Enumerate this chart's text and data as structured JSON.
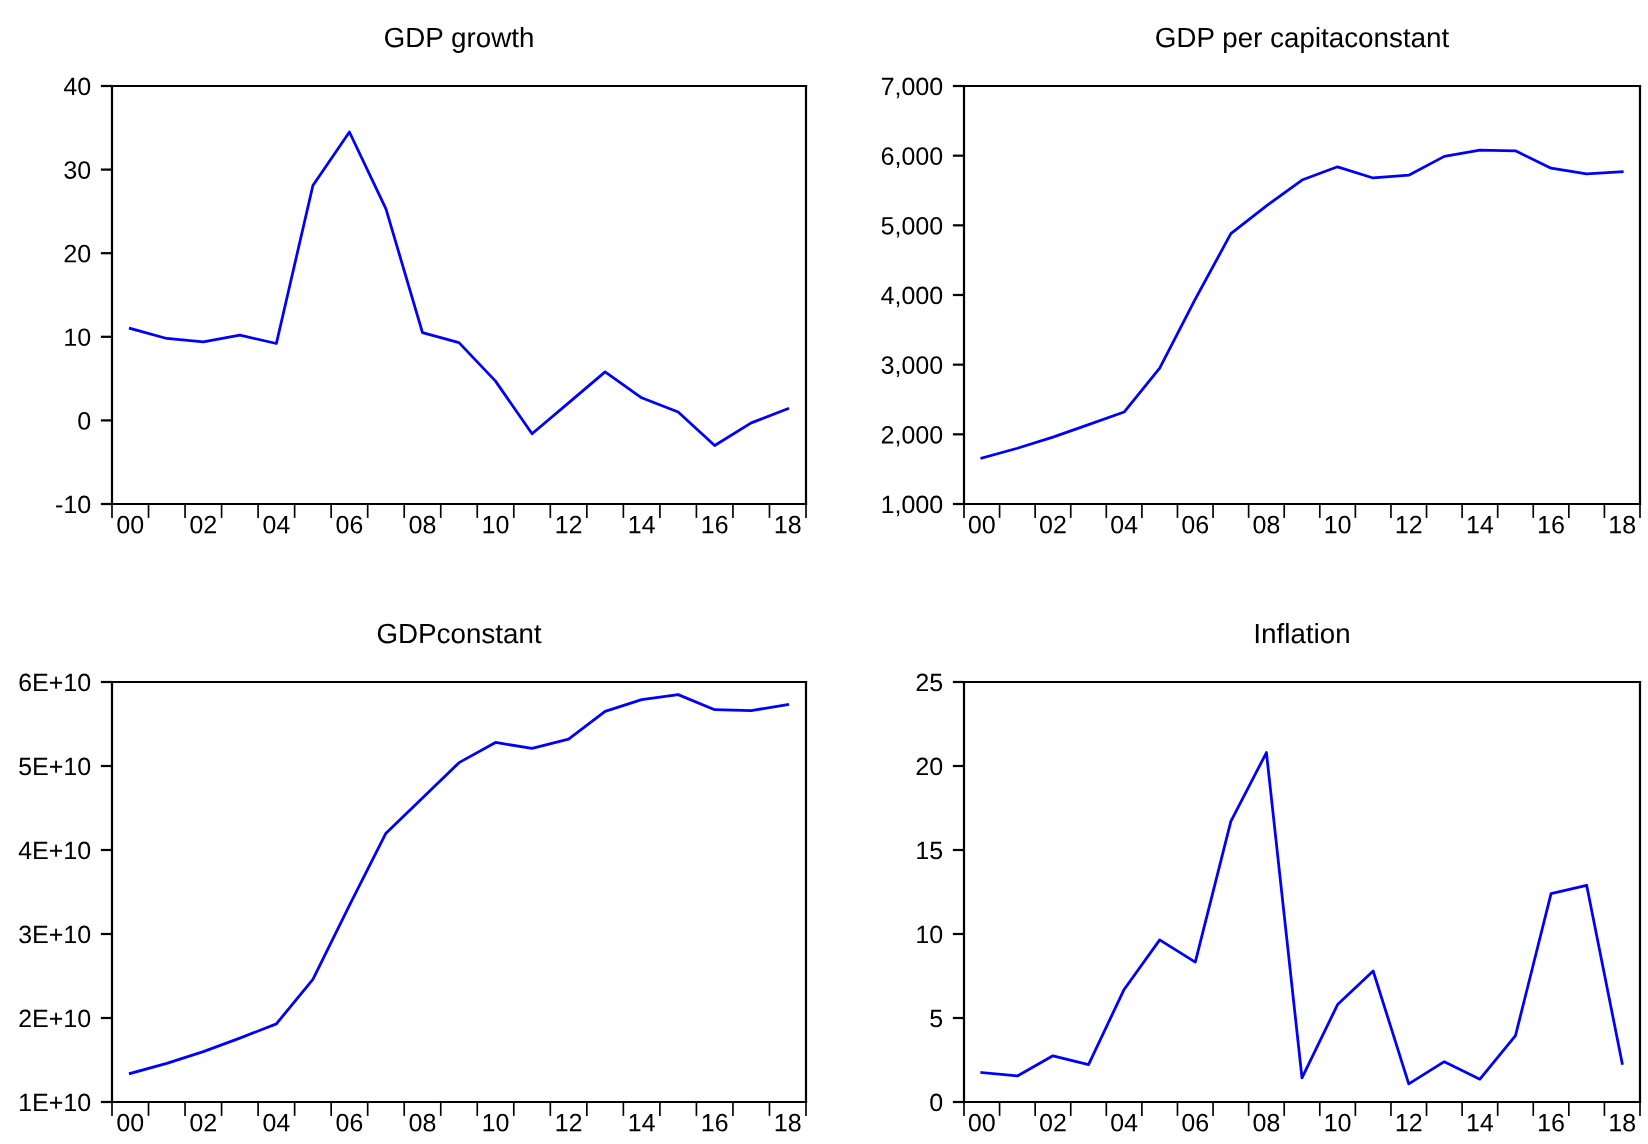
{
  "chart_data": [
    {
      "type": "line",
      "title": "GDP growth",
      "categories": [
        "00",
        null,
        "02",
        null,
        "04",
        null,
        "06",
        null,
        "08",
        null,
        "10",
        null,
        "12",
        null,
        "14",
        null,
        "16",
        null,
        "18"
      ],
      "series": [
        {
          "color": "#0000ff",
          "values": [
            11.0,
            9.8,
            9.4,
            10.2,
            9.2,
            28.1,
            34.5,
            25.3,
            10.5,
            9.3,
            4.7,
            -1.6,
            2.1,
            5.8,
            2.7,
            1.0,
            -3.0,
            -0.3,
            1.4
          ]
        }
      ],
      "ylim": [
        -10,
        40
      ],
      "yticks": [
        -10,
        0,
        10,
        20,
        30,
        40
      ],
      "grid": false,
      "legend": false,
      "marker": "none",
      "line_style": "solid"
    },
    {
      "type": "line",
      "title": "GDP per capitaconstant",
      "categories": [
        "00",
        null,
        "02",
        null,
        "04",
        null,
        "06",
        null,
        "08",
        null,
        "10",
        null,
        "12",
        null,
        "14",
        null,
        "16",
        null,
        "18"
      ],
      "series": [
        {
          "color": "#0000ff",
          "values": [
            1660,
            1800,
            1960,
            2140,
            2320,
            2950,
            3940,
            4880,
            5280,
            5650,
            5840,
            5680,
            5720,
            5990,
            6080,
            6070,
            5820,
            5740,
            5770
          ]
        }
      ],
      "ylim": [
        1000,
        7000
      ],
      "yticks": [
        {
          "value": 1000,
          "label": "1,000"
        },
        {
          "value": 2000,
          "label": "2,000"
        },
        {
          "value": 3000,
          "label": "3,000"
        },
        {
          "value": 4000,
          "label": "4,000"
        },
        {
          "value": 5000,
          "label": "5,000"
        },
        {
          "value": 6000,
          "label": "6,000"
        },
        {
          "value": 7000,
          "label": "7,000"
        }
      ],
      "grid": false,
      "legend": false,
      "marker": "none",
      "line_style": "solid"
    },
    {
      "type": "line",
      "title": "GDPconstant",
      "categories": [
        "00",
        null,
        "02",
        null,
        "04",
        null,
        "06",
        null,
        "08",
        null,
        "10",
        null,
        "12",
        null,
        "14",
        null,
        "16",
        null,
        "18"
      ],
      "series": [
        {
          "color": "#0000ff",
          "values": [
            13400000000,
            14600000000,
            16000000000,
            17600000000,
            19300000000,
            24600000000,
            33400000000,
            42000000000,
            46200000000,
            50400000000,
            52800000000,
            52100000000,
            53200000000,
            56500000000,
            57900000000,
            58500000000,
            56700000000,
            56600000000,
            57300000000
          ]
        }
      ],
      "ylim": [
        10000000000,
        60000000000
      ],
      "yticks": [
        {
          "value": 10000000000,
          "label": "1E+10"
        },
        {
          "value": 20000000000,
          "label": "2E+10"
        },
        {
          "value": 30000000000,
          "label": "3E+10"
        },
        {
          "value": 40000000000,
          "label": "4E+10"
        },
        {
          "value": 50000000000,
          "label": "5E+10"
        },
        {
          "value": 60000000000,
          "label": "6E+10"
        }
      ],
      "grid": false,
      "legend": false,
      "marker": "none",
      "line_style": "solid"
    },
    {
      "type": "line",
      "title": "Inflation",
      "categories": [
        "00",
        null,
        "02",
        null,
        "04",
        null,
        "06",
        null,
        "08",
        null,
        "10",
        null,
        "12",
        null,
        "14",
        null,
        "16",
        null,
        "18"
      ],
      "series": [
        {
          "color": "#0000ff",
          "values": [
            1.75,
            1.55,
            2.75,
            2.23,
            6.7,
            9.65,
            8.33,
            16.7,
            20.8,
            1.44,
            5.8,
            7.8,
            1.08,
            2.4,
            1.36,
            3.95,
            12.4,
            12.9,
            2.3
          ]
        }
      ],
      "ylim": [
        0,
        25
      ],
      "yticks": [
        0,
        5,
        10,
        15,
        20,
        25
      ],
      "grid": false,
      "legend": false,
      "marker": "none",
      "line_style": "solid"
    }
  ]
}
